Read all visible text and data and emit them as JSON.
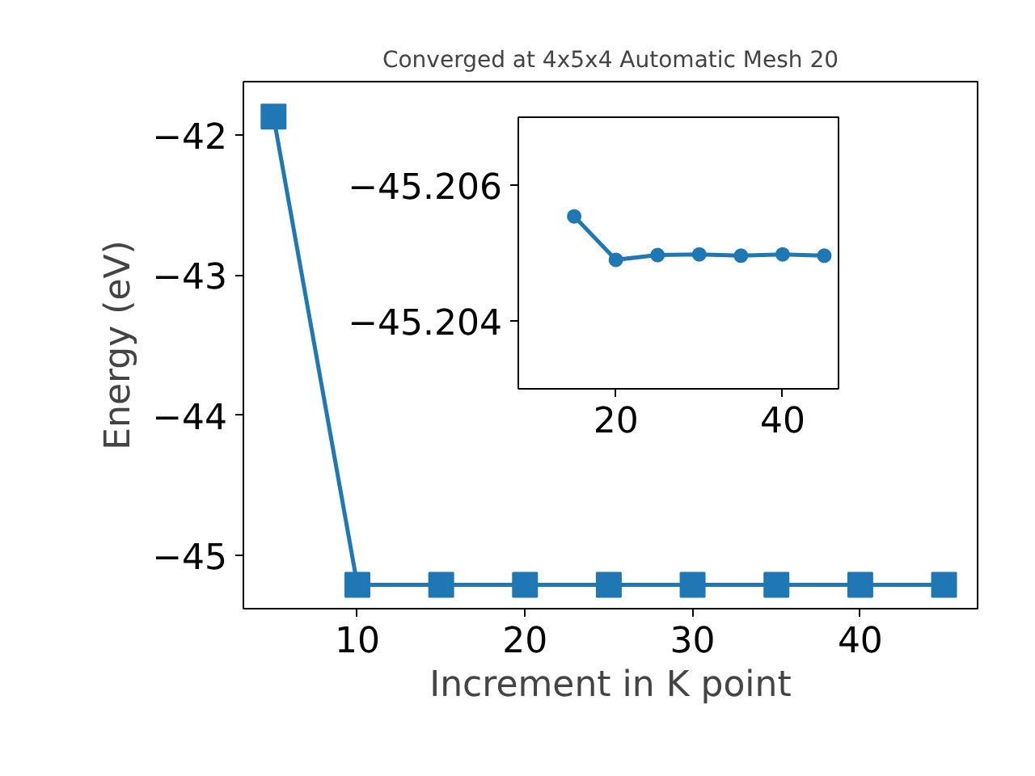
{
  "chart_data": [
    {
      "type": "line",
      "title": "Converged at 4x5x4 Automatic Mesh 20",
      "xlabel": "Increment in K point",
      "ylabel": "Energy (eV)",
      "marker": "square",
      "line_style": "solid",
      "color": "#1f77b4",
      "x": [
        5,
        10,
        15,
        20,
        25,
        30,
        35,
        40,
        45
      ],
      "values": [
        -41.87,
        -45.21,
        -45.21,
        -45.21,
        -45.21,
        -45.21,
        -45.21,
        -45.21,
        -45.21
      ],
      "xlim": [
        3.2,
        47.0
      ],
      "ylim": [
        -45.38,
        -41.62
      ],
      "xticks": [
        10,
        20,
        30,
        40
      ],
      "yticks": [
        {
          "value": -45,
          "label": "−45"
        },
        {
          "value": -44,
          "label": "−44"
        },
        {
          "value": -43,
          "label": "−43"
        },
        {
          "value": -42,
          "label": "−42"
        }
      ]
    },
    {
      "type": "line",
      "marker": "circle",
      "line_style": "solid",
      "color": "#1f77b4",
      "x": [
        15,
        20,
        25,
        30,
        35,
        40,
        45
      ],
      "values": [
        -45.20554,
        -45.2049,
        -45.20497,
        -45.20498,
        -45.20496,
        -45.20498,
        -45.20496
      ],
      "xlim": [
        8.3,
        46.7
      ],
      "ylim": [
        -45.203,
        -45.207
      ],
      "xticks": [
        20,
        40
      ],
      "yticks": [
        {
          "value": -45.206,
          "label": "−45.206"
        },
        {
          "value": -45.204,
          "label": "−45.204"
        }
      ]
    }
  ]
}
